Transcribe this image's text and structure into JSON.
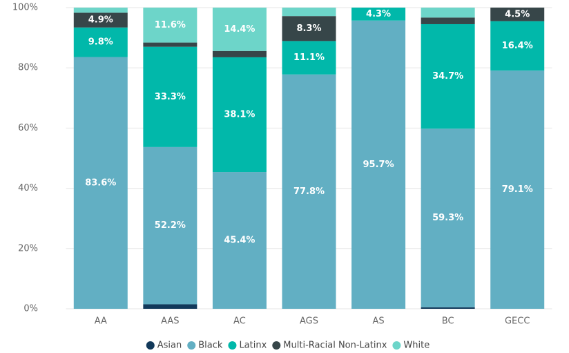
{
  "chart_data": {
    "type": "stacked_bar",
    "categories": [
      "AA",
      "AAS",
      "AC",
      "AGS",
      "AS",
      "BC",
      "GECC"
    ],
    "series": [
      {
        "name": "Asian",
        "color": "#12395a",
        "values": [
          0,
          1.5,
          0,
          0,
          0,
          0.5,
          0
        ],
        "value_labels": [
          null,
          null,
          null,
          null,
          null,
          null,
          null
        ]
      },
      {
        "name": "Black",
        "color": "#62afc3",
        "values": [
          83.6,
          52.2,
          45.4,
          77.8,
          95.7,
          59.3,
          79.1
        ],
        "value_labels": [
          "83.6%",
          "52.2%",
          "45.4%",
          "77.8%",
          "95.7%",
          "59.3%",
          "79.1%"
        ]
      },
      {
        "name": "Latinx",
        "color": "#01b8aa",
        "values": [
          9.8,
          33.3,
          38.1,
          11.1,
          4.3,
          34.7,
          16.4
        ],
        "value_labels": [
          "9.8%",
          "33.3%",
          "38.1%",
          "11.1%",
          "4.3%",
          "34.7%",
          "16.4%"
        ]
      },
      {
        "name": "Multi-Racial Non-Latinx",
        "color": "#374649",
        "values": [
          4.9,
          1.4,
          2.1,
          8.3,
          0,
          2.2,
          4.5
        ],
        "value_labels": [
          "4.9%",
          null,
          null,
          "8.3%",
          null,
          null,
          "4.5%"
        ]
      },
      {
        "name": "White",
        "color": "#6dd5c9",
        "values": [
          1.7,
          11.6,
          14.4,
          2.8,
          0,
          3.3,
          0
        ],
        "value_labels": [
          null,
          "11.6%",
          "14.4%",
          null,
          null,
          null,
          null
        ]
      }
    ],
    "ylim": [
      0,
      100
    ],
    "yticks": [
      {
        "value": 0,
        "label": "0%"
      },
      {
        "value": 20,
        "label": "20%"
      },
      {
        "value": 40,
        "label": "40%"
      },
      {
        "value": 60,
        "label": "60%"
      },
      {
        "value": 80,
        "label": "80%"
      },
      {
        "value": 100,
        "label": "100%"
      }
    ],
    "grid": true,
    "legend": "bottom"
  }
}
